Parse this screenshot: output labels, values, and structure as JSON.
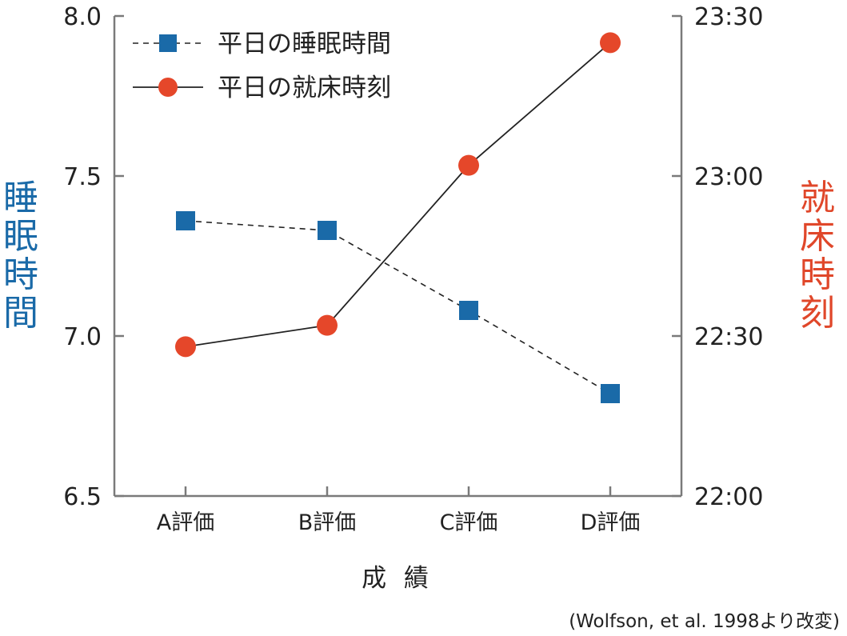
{
  "chart_data": {
    "type": "line",
    "categories": [
      "A評価",
      "B評価",
      "C評価",
      "D評価"
    ],
    "xlabel": "成 績",
    "ylabel_left": "睡眠時間",
    "ylabel_right": "就床時刻",
    "left_axis": {
      "ylim": [
        6.5,
        8.0
      ],
      "ticks": [
        "6.5",
        "7.0",
        "7.5",
        "8.0"
      ]
    },
    "right_axis": {
      "ylim_minutes": [
        0,
        90
      ],
      "ticks": [
        "22:00",
        "22:30",
        "23:00",
        "23:30"
      ]
    },
    "series": [
      {
        "name": "平日の睡眠時間",
        "axis": "left",
        "style": "dashed",
        "marker": "square",
        "color": "#1a6aa8",
        "values": [
          7.36,
          7.33,
          7.08,
          6.82
        ]
      },
      {
        "name": "平日の就床時刻",
        "axis": "right",
        "style": "solid",
        "marker": "circle",
        "color": "#e5472a",
        "values": [
          "22:28",
          "22:32",
          "23:02",
          "23:25"
        ]
      }
    ],
    "legend_position": "top-left",
    "source": "(Wolfson, et al. 1998より改変)",
    "colors": {
      "left_label": "#1a6aa8",
      "right_label": "#e0472a",
      "axis": "#7a7a7a",
      "line": "#222222"
    }
  }
}
